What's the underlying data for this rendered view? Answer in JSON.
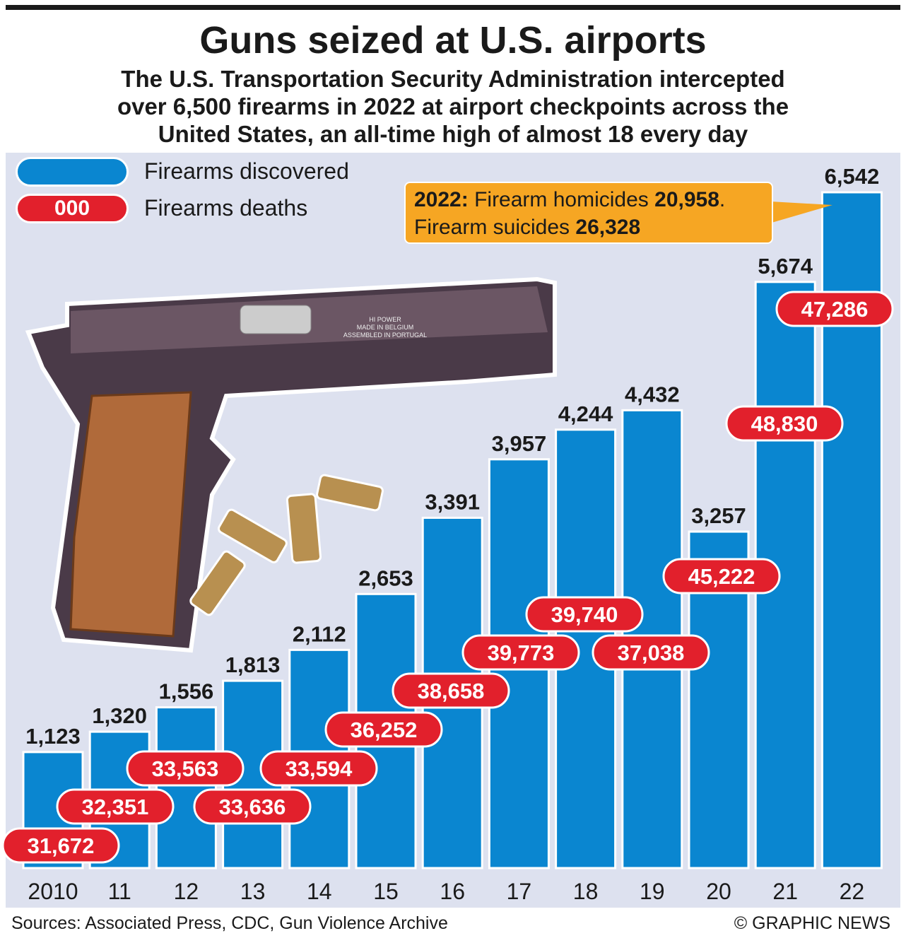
{
  "title": "Guns seized at U.S. airports",
  "subtitle": [
    "The U.S. Transportation Security Administration intercepted",
    "over 6,500 firearms in 2022 at airport checkpoints across the",
    "United States, an all-time high of almost 18 every day"
  ],
  "legend": {
    "discovered": "Firearms discovered",
    "deaths_sample": "000",
    "deaths": "Firearms deaths"
  },
  "callout": {
    "year": "2022:",
    "homicides_label": "Firearm homicides",
    "homicides": "20,958",
    "suicides_label": "Firearm suicides",
    "suicides": "26,328"
  },
  "gun_engraving": [
    "HI POWER",
    "MADE IN BELGIUM",
    "ASSEMBLED IN PORTUGAL"
  ],
  "colors": {
    "bar": "#0a86d0",
    "deaths": "#e2202c",
    "callout": "#f6a623",
    "panel": "#dde1ef"
  },
  "chart_data": {
    "type": "bar",
    "title": "Guns seized at U.S. airports",
    "categories": [
      "2010",
      "11",
      "12",
      "13",
      "14",
      "15",
      "16",
      "17",
      "18",
      "19",
      "20",
      "21",
      "22"
    ],
    "series": [
      {
        "name": "Firearms discovered",
        "values": [
          1123,
          1320,
          1556,
          1813,
          2112,
          2653,
          3391,
          3957,
          4244,
          4432,
          3257,
          5674,
          6542
        ],
        "labels": [
          "1,123",
          "1,320",
          "1,556",
          "1,813",
          "2,112",
          "2,653",
          "3,391",
          "3,957",
          "4,244",
          "4,432",
          "3,257",
          "5,674",
          "6,542"
        ]
      },
      {
        "name": "Firearms deaths",
        "values": [
          31672,
          32351,
          33563,
          33636,
          33594,
          36252,
          38658,
          39773,
          39740,
          37038,
          45222,
          48830,
          47286
        ],
        "labels": [
          "31,672",
          "32,351",
          "33,563",
          "33,636",
          "33,594",
          "36,252",
          "38,658",
          "39,773",
          "39,740",
          "37,038",
          "45,222",
          "48,830",
          "47,286"
        ]
      }
    ],
    "ylim": [
      0,
      6542
    ],
    "grid": false,
    "legend": "top-left"
  },
  "footer": {
    "sources": "Sources: Associated Press, CDC, Gun Violence Archive",
    "credit": "© GRAPHIC NEWS"
  }
}
